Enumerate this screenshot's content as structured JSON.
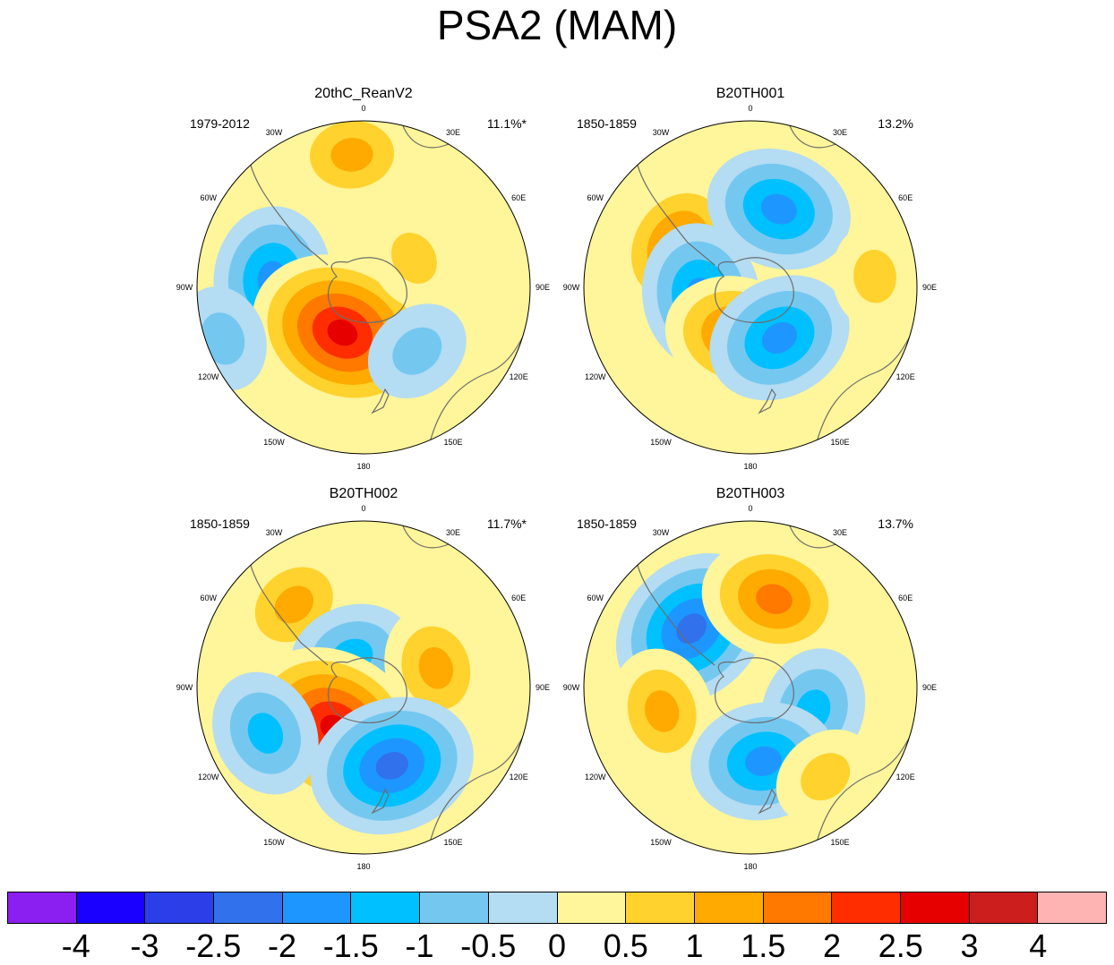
{
  "title": "PSA2 (MAM)",
  "chart_data": {
    "type": "heatmap",
    "projection": "south-polar-stereographic",
    "longitude_labels": [
      "0",
      "30E",
      "60E",
      "90E",
      "120E",
      "150E",
      "180",
      "150W",
      "120W",
      "90W",
      "60W",
      "30W"
    ],
    "colorbar": {
      "levels": [
        "-4",
        "-3",
        "-2.5",
        "-2",
        "-1.5",
        "-1",
        "-0.5",
        "0",
        "0.5",
        "1",
        "1.5",
        "2",
        "2.5",
        "3",
        "4"
      ],
      "colors": [
        "#8b1ef0",
        "#1a00ff",
        "#2b3ee8",
        "#3171eb",
        "#1e96ff",
        "#00c0ff",
        "#74c8f0",
        "#b4dcf2",
        "#fff59a",
        "#ffd22d",
        "#ffaa00",
        "#ff7800",
        "#ff2d00",
        "#e60000",
        "#cd1e1e",
        "#ffb4b4"
      ]
    },
    "panels": [
      {
        "name": "20thC_ReanV2",
        "period": "1979-2012",
        "variance": "11.1%*",
        "anomalies": [
          {
            "lon": -85,
            "r": 0.55,
            "value": -1.8
          },
          {
            "lon": -155,
            "r": 0.3,
            "value": 2.8
          },
          {
            "lon": -5,
            "r": 0.8,
            "value": 1.3
          },
          {
            "lon": 60,
            "r": 0.35,
            "value": 0.6
          },
          {
            "lon": 140,
            "r": 0.5,
            "value": -0.6
          },
          {
            "lon": -110,
            "r": 0.9,
            "value": -0.8
          }
        ]
      },
      {
        "name": "B20TH001",
        "period": "1850-1859",
        "variance": "13.2%",
        "anomalies": [
          {
            "lon": -60,
            "r": 0.5,
            "value": 1.6
          },
          {
            "lon": 20,
            "r": 0.5,
            "value": -1.6
          },
          {
            "lon": -100,
            "r": 0.3,
            "value": -1.7
          },
          {
            "lon": -165,
            "r": 0.3,
            "value": 1.9
          },
          {
            "lon": 150,
            "r": 0.35,
            "value": -2.0
          },
          {
            "lon": 85,
            "r": 0.75,
            "value": 0.8
          }
        ]
      },
      {
        "name": "B20TH002",
        "period": "1850-1859",
        "variance": "11.7%*",
        "anomalies": [
          {
            "lon": -40,
            "r": 0.65,
            "value": 1.4
          },
          {
            "lon": -20,
            "r": 0.2,
            "value": -1.5
          },
          {
            "lon": 75,
            "r": 0.45,
            "value": 1.2
          },
          {
            "lon": -145,
            "r": 0.3,
            "value": 2.8
          },
          {
            "lon": -115,
            "r": 0.65,
            "value": -1.5
          },
          {
            "lon": 160,
            "r": 0.5,
            "value": -2.2
          }
        ]
      },
      {
        "name": "B20TH003",
        "period": "1850-1859",
        "variance": "13.7%",
        "anomalies": [
          {
            "lon": -45,
            "r": 0.5,
            "value": -2.4
          },
          {
            "lon": 15,
            "r": 0.55,
            "value": 1.6
          },
          {
            "lon": -105,
            "r": 0.55,
            "value": 1.2
          },
          {
            "lon": 110,
            "r": 0.4,
            "value": -1.2
          },
          {
            "lon": 170,
            "r": 0.45,
            "value": -2.0
          },
          {
            "lon": 140,
            "r": 0.7,
            "value": 0.8
          }
        ]
      }
    ]
  }
}
